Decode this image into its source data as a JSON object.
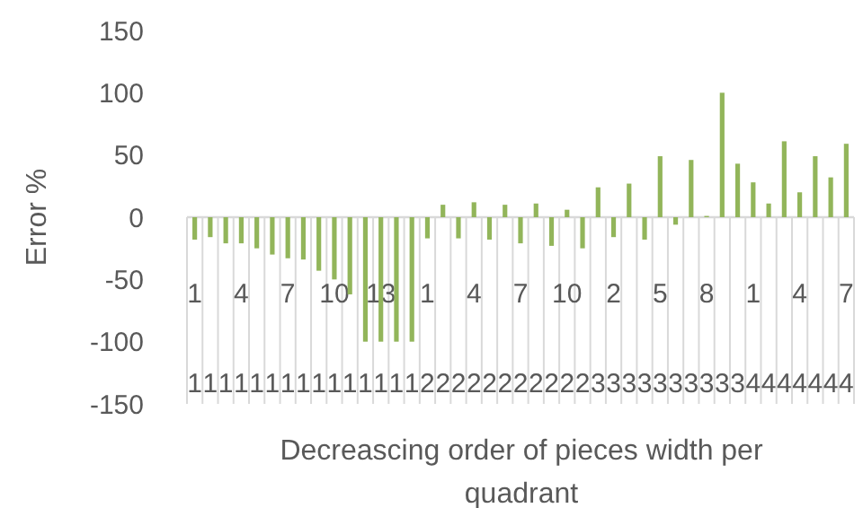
{
  "chart_data": {
    "type": "bar",
    "ylabel": "Error %",
    "xlabel": "Decreascing order of pieces width per quadrant",
    "categories": [
      "1",
      null,
      null,
      "4",
      null,
      null,
      "7",
      null,
      null,
      "10",
      null,
      null,
      "13",
      null,
      null,
      "1",
      null,
      null,
      "4",
      null,
      null,
      "7",
      null,
      null,
      "10",
      null,
      null,
      "2",
      null,
      null,
      "5",
      null,
      null,
      "8",
      null,
      null,
      "1",
      null,
      null,
      "4",
      null,
      null,
      "7"
    ],
    "values": [
      -18,
      -16,
      -21,
      -21,
      -25,
      -30,
      -33,
      -34,
      -43,
      -50,
      -62,
      -100,
      -100,
      -100,
      -100,
      -17,
      10,
      -17,
      12,
      -18,
      10,
      -21,
      11,
      -23,
      6,
      -25,
      24,
      -16,
      27,
      -18,
      49,
      -6,
      46,
      1,
      100,
      43,
      28,
      11,
      61,
      20,
      49,
      32,
      59
    ],
    "color": "#92b55a",
    "grid": "x",
    "ylim": [
      -150,
      150
    ],
    "yticks": [
      -150,
      -100,
      -50,
      0,
      50,
      100,
      150
    ],
    "annotations": [
      "1111111111111112222222222233333333334444444"
    ]
  }
}
